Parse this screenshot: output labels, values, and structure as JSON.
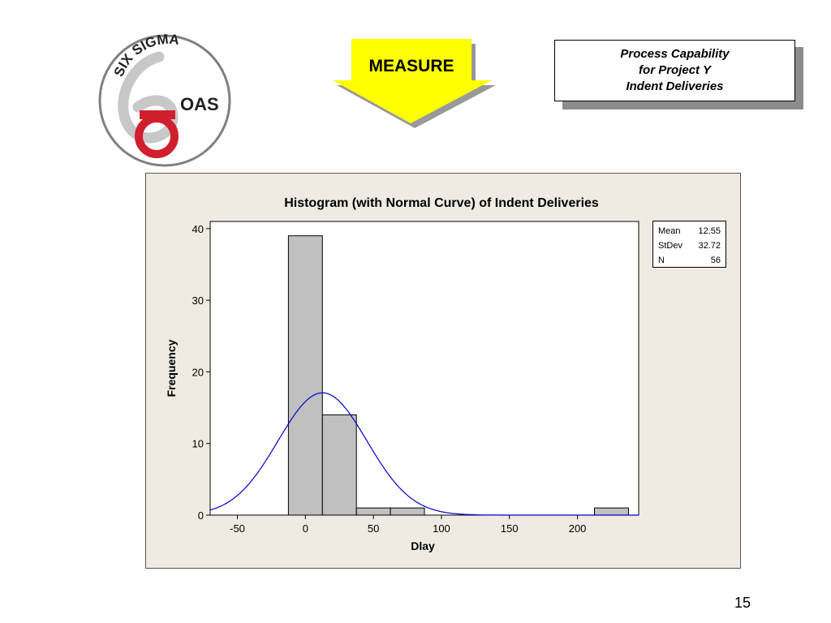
{
  "logo": {
    "icon": "six-sigma-oas-logo",
    "top_text": "SIX SIGMA",
    "side_text": "OAS",
    "colors": {
      "ring": "#808080",
      "sigma": "#d0202e",
      "six": "#c8c8c8"
    }
  },
  "header": {
    "measure_label": "MEASURE",
    "arrow_color": "#ffff00",
    "title_lines": [
      "Process Capability",
      "for Project Y",
      "Indent Deliveries"
    ]
  },
  "stats": [
    {
      "label": "Mean",
      "value": "12.55"
    },
    {
      "label": "StDev",
      "value": "32.72"
    },
    {
      "label": "N",
      "value": "56"
    }
  ],
  "page_number": "15",
  "chart_data": {
    "type": "bar",
    "subtype": "histogram",
    "title": "Histogram (with Normal Curve) of Indent Deliveries",
    "xlabel": "Dlay",
    "ylabel": "Frequency",
    "xlim": [
      -70,
      245
    ],
    "ylim": [
      0,
      41
    ],
    "xticks": [
      -50,
      0,
      50,
      100,
      150,
      200
    ],
    "yticks": [
      0,
      10,
      20,
      30,
      40
    ],
    "bin_width": 25,
    "bins": [
      {
        "start": -12.5,
        "end": 12.5,
        "count": 39
      },
      {
        "start": 12.5,
        "end": 37.5,
        "count": 14
      },
      {
        "start": 37.5,
        "end": 62.5,
        "count": 1
      },
      {
        "start": 62.5,
        "end": 87.5,
        "count": 1
      },
      {
        "start": 212.5,
        "end": 237.5,
        "count": 1
      }
    ],
    "normal_curve": {
      "mean": 12.55,
      "stdev": 32.72,
      "n": 56,
      "color": "#0000cc"
    },
    "bar_color": "#c0c0c0",
    "grid": false,
    "legend_position": "top-right outside plot"
  }
}
